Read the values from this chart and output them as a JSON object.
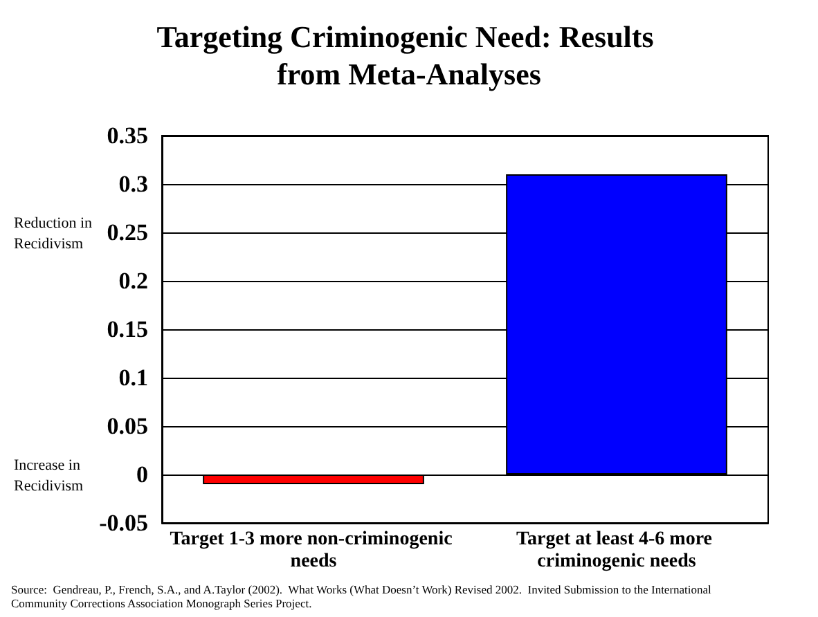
{
  "chart_data": {
    "type": "bar",
    "title": "Targeting Criminogenic Need: Results from Meta-Analyses",
    "categories": [
      "Target 1-3 more non-criminogenic needs",
      "Target at least 4-6 more criminogenic needs"
    ],
    "values": [
      -0.01,
      0.31
    ],
    "colors": [
      "#ff0000",
      "#0000ff"
    ],
    "ylim": [
      -0.05,
      0.35
    ],
    "yticks": [
      -0.05,
      0,
      0.05,
      0.1,
      0.15,
      0.2,
      0.25,
      0.3,
      0.35
    ],
    "grid": "y",
    "annotations": [
      "Reduction in Recidivism",
      "Increase in Recidivism",
      "Source:  Gendreau, P., French, S.A., and A.Taylor (2002).  What Works (What Doesn’t Work) Revised 2002.  Invited Submission to the International Community Corrections Association Monograph Series Project."
    ]
  }
}
